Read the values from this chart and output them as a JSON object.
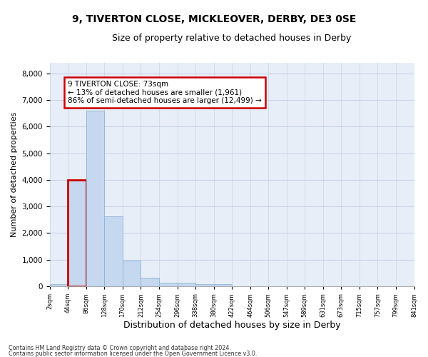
{
  "title_line1": "9, TIVERTON CLOSE, MICKLEOVER, DERBY, DE3 0SE",
  "title_line2": "Size of property relative to detached houses in Derby",
  "xlabel": "Distribution of detached houses by size in Derby",
  "ylabel": "Number of detached properties",
  "bar_values": [
    70,
    4000,
    6600,
    2620,
    960,
    320,
    140,
    130,
    70,
    70,
    0,
    0,
    0,
    0,
    0,
    0,
    0,
    0,
    0,
    0
  ],
  "categories": [
    "2sqm",
    "44sqm",
    "86sqm",
    "128sqm",
    "170sqm",
    "212sqm",
    "254sqm",
    "296sqm",
    "338sqm",
    "380sqm",
    "422sqm",
    "464sqm",
    "506sqm",
    "547sqm",
    "589sqm",
    "631sqm",
    "673sqm",
    "715sqm",
    "757sqm",
    "799sqm",
    "841sqm"
  ],
  "bar_color": "#c5d8ef",
  "bar_edge_color": "#8ab4d8",
  "annotation_box_color": "#cc0000",
  "annotation_text": "9 TIVERTON CLOSE: 73sqm\n← 13% of detached houses are smaller (1,961)\n86% of semi-detached houses are larger (12,499) →",
  "property_bar_index": 1,
  "property_bar_color": "#cc0000",
  "ylim": [
    0,
    8400
  ],
  "yticks": [
    0,
    1000,
    2000,
    3000,
    4000,
    5000,
    6000,
    7000,
    8000
  ],
  "grid_color": "#c8d4e8",
  "background_color": "#e8eef8",
  "footer_line1": "Contains HM Land Registry data © Crown copyright and database right 2024.",
  "footer_line2": "Contains public sector information licensed under the Open Government Licence v3.0.",
  "title_fontsize": 10,
  "subtitle_fontsize": 9,
  "xlabel_fontsize": 9,
  "ylabel_fontsize": 8,
  "annotation_fontsize": 7.5
}
